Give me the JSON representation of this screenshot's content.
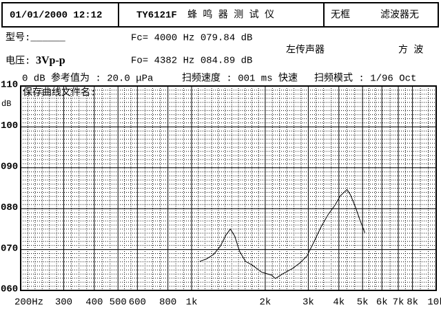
{
  "header": {
    "datetime": "01/01/2000 12:12",
    "model": "TY6121F",
    "device": "蜂 鸣 器 测 试 仪",
    "frame": "无框",
    "filter": "滤波器无"
  },
  "info": {
    "type_label": "型号:______",
    "fc": "Fc= 4000 Hz 079.84 dB",
    "mic": "左传声器",
    "wave": "方 波",
    "voltage_label": "电压:",
    "voltage": "3Vp-p",
    "fo": "Fo= 4382 Hz 084.89 dB"
  },
  "status": {
    "reference": "0 dB 参考值为 : 20.0 μPa",
    "speed": "扫频速度 : 001 ms 快速",
    "mode": "扫频模式 : 1/96  Oct"
  },
  "chart_data": {
    "type": "line",
    "annotation": "保存曲线文件名:",
    "y_label": "dB",
    "xscale": "log",
    "grid": true,
    "color": "#000000",
    "xlim": [
      200,
      10000
    ],
    "ylim": [
      60,
      110
    ],
    "xticks": [
      {
        "value": 200,
        "label": "200Hz"
      },
      300,
      400,
      500,
      600,
      800,
      {
        "value": 1000,
        "label": "1k"
      },
      {
        "value": 2000,
        "label": "2k"
      },
      {
        "value": 3000,
        "label": "3k"
      },
      {
        "value": 4000,
        "label": "4k"
      },
      {
        "value": 5000,
        "label": "5k"
      },
      {
        "value": 6000,
        "label": "6k"
      },
      {
        "value": 7000,
        "label": "7k"
      },
      {
        "value": 8000,
        "label": "8k"
      },
      {
        "value": 10000,
        "label": "10k"
      }
    ],
    "yticks": [
      {
        "value": 60,
        "label": "060"
      },
      {
        "value": 70,
        "label": "070"
      },
      {
        "value": 80,
        "label": "080"
      },
      {
        "value": 90,
        "label": "090"
      },
      100,
      110
    ],
    "x": [
      1080,
      1150,
      1230,
      1310,
      1380,
      1440,
      1500,
      1570,
      1660,
      1770,
      1930,
      2130,
      2200,
      2350,
      2590,
      2770,
      2960,
      3160,
      3380,
      3610,
      3860,
      4050,
      4320,
      4460,
      4670,
      4880,
      5110
    ],
    "values": [
      67.1,
      67.7,
      68.8,
      70.8,
      73.5,
      75.0,
      73.3,
      69.6,
      67.1,
      66.2,
      64.5,
      63.7,
      62.9,
      64.0,
      65.4,
      66.7,
      68.4,
      71.8,
      75.5,
      78.5,
      80.9,
      83.1,
      84.7,
      83.4,
      80.5,
      77.2,
      74.1
    ]
  }
}
